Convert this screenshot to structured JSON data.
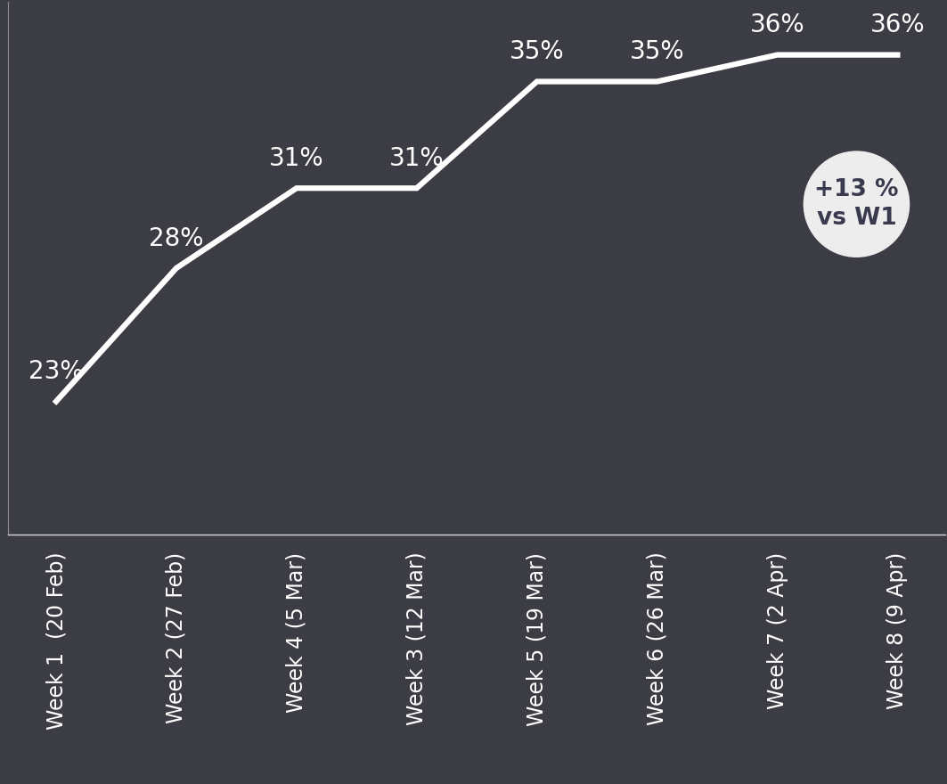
{
  "chart_data": {
    "type": "line",
    "categories": [
      "Week 1  (20 Feb)",
      "Week 2 (27 Feb)",
      "Week 4 (5 Mar)",
      "Week 3 (12 Mar)",
      "Week 5 (19 Mar)",
      "Week 6 (26 Mar)",
      "Week 7 (2 Apr)",
      "Week 8 (9 Apr)"
    ],
    "values": [
      23,
      28,
      31,
      31,
      35,
      35,
      36,
      36
    ],
    "value_labels": [
      "23%",
      "28%",
      "31%",
      "31%",
      "35%",
      "35%",
      "36%",
      "36%"
    ],
    "data_labels": true,
    "color": "#ffffff",
    "ylim": [
      18,
      38
    ],
    "tick_labels": "x",
    "annotations": [
      "+13 %\nvs W1"
    ]
  }
}
